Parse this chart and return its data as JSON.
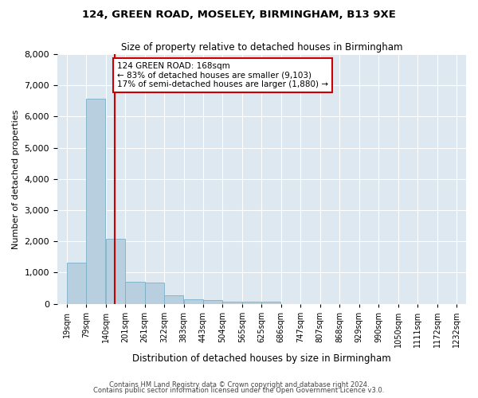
{
  "title": "124, GREEN ROAD, MOSELEY, BIRMINGHAM, B13 9XE",
  "subtitle": "Size of property relative to detached houses in Birmingham",
  "xlabel": "Distribution of detached houses by size in Birmingham",
  "ylabel": "Number of detached properties",
  "footnote1": "Contains HM Land Registry data © Crown copyright and database right 2024.",
  "footnote2": "Contains public sector information licensed under the Open Government Licence v3.0.",
  "property_label": "124 GREEN ROAD: 168sqm",
  "annotation_left": "← 83% of detached houses are smaller (9,103)",
  "annotation_right": "17% of semi-detached houses are larger (1,880) →",
  "property_size": 168,
  "bar_color": "#b8cfe0",
  "bar_edge_color": "#7aafc8",
  "vline_color": "#cc0000",
  "annotation_box_color": "#cc0000",
  "background_color": "#dde8f0",
  "grid_color": "#ffffff",
  "bins": [
    19,
    79,
    140,
    201,
    261,
    322,
    383,
    443,
    504,
    565,
    625,
    686,
    747,
    807,
    868,
    929,
    990,
    1050,
    1111,
    1172,
    1232
  ],
  "counts": [
    1310,
    6580,
    2090,
    700,
    680,
    270,
    150,
    110,
    70,
    60,
    80,
    0,
    0,
    0,
    0,
    0,
    0,
    0,
    0,
    0,
    0
  ],
  "ylim": [
    0,
    8000
  ],
  "yticks": [
    0,
    1000,
    2000,
    3000,
    4000,
    5000,
    6000,
    7000,
    8000
  ]
}
